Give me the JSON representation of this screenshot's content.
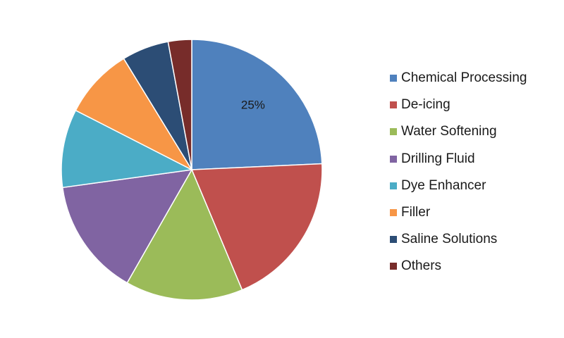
{
  "chart_data": {
    "type": "pie",
    "categories": [
      "Chemical Processing",
      "De-icing",
      "Water Softening",
      "Drilling Fluid",
      "Dye Enhancer",
      "Filler",
      "Saline Solutions",
      "Others"
    ],
    "values": [
      25,
      20,
      15,
      15,
      10,
      9,
      6,
      3
    ],
    "colors": [
      "#4f81bd",
      "#c0504d",
      "#9bbb59",
      "#8064a2",
      "#4bacc6",
      "#f79646",
      "#2c4d75",
      "#772c2a"
    ],
    "data_labels": [
      {
        "category": "Chemical Processing",
        "text": "25%"
      }
    ],
    "legend_position": "right",
    "start_angle": "12 o'clock",
    "direction": "clockwise"
  }
}
